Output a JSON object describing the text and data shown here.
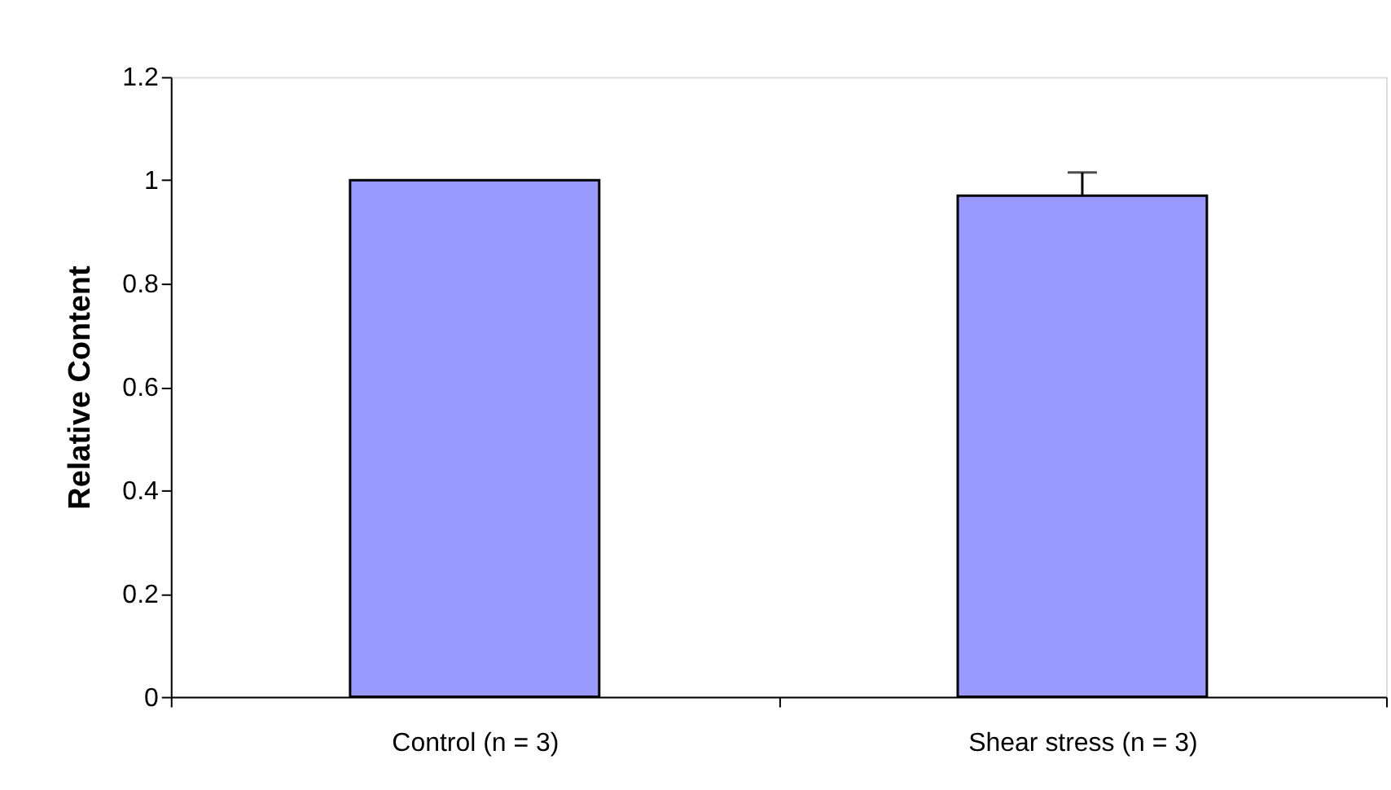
{
  "chart_data": {
    "type": "bar",
    "ylabel": "Relative Content",
    "categories": [
      "Control (n = 3)",
      "Shear stress (n = 3)"
    ],
    "values": [
      1.0,
      0.97
    ],
    "errors": [
      null,
      [
        0.97,
        1.015
      ]
    ],
    "color": "#9999ff",
    "ylim": [
      0,
      1.2
    ],
    "yticks": [
      0,
      0.2,
      0.4,
      0.6,
      0.8,
      1,
      1.2
    ],
    "grid": false
  }
}
